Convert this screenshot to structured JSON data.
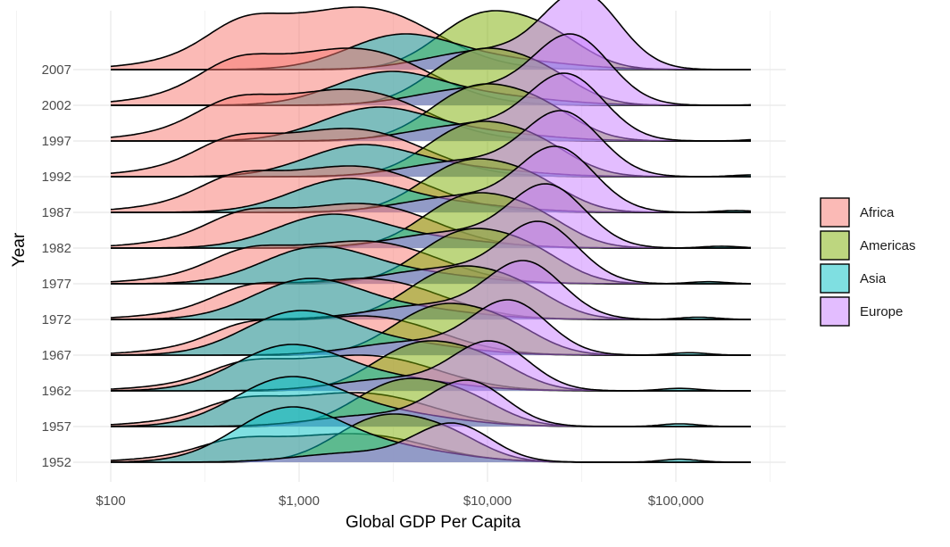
{
  "chart_data": {
    "type": "ridgeline",
    "title": "",
    "xlabel": "Global GDP Per Capita",
    "ylabel": "Year",
    "x_scale": "log10",
    "xlim": [
      100,
      250000
    ],
    "x_ticks": [
      100,
      1000,
      10000,
      100000
    ],
    "x_tick_labels": [
      "$100",
      "$1,000",
      "$10,000",
      "$100,000"
    ],
    "years": [
      1952,
      1957,
      1962,
      1967,
      1972,
      1977,
      1982,
      1987,
      1992,
      1997,
      2002,
      2007
    ],
    "year_labels": [
      "1952",
      "1957",
      "1962",
      "1967",
      "1972",
      "1977",
      "1982",
      "1987",
      "1992",
      "1997",
      "2002",
      "2007"
    ],
    "grid": true,
    "legend_placement": "right",
    "legend_title": "",
    "alpha": 0.5,
    "series": [
      {
        "name": "Africa",
        "color": "#F8766D",
        "components": [
          [
            3.02,
            0.46,
            0.5
          ],
          [
            2.65,
            0.18,
            0.2
          ],
          [
            3.45,
            0.3,
            0.3
          ]
        ],
        "peak_per_year": [
          0.8,
          0.95,
          1.0,
          1.1,
          1.15,
          1.2,
          1.25,
          1.3,
          1.35,
          1.45,
          1.6,
          1.75
        ],
        "shift_per_year": [
          0,
          0.02,
          0.05,
          0.06,
          0.07,
          0.06,
          0.04,
          0.0,
          -0.02,
          -0.02,
          0.0,
          0.04
        ]
      },
      {
        "name": "Americas",
        "color": "#7CAE00",
        "components": [
          [
            3.43,
            0.24,
            1.0
          ],
          [
            3.8,
            0.2,
            0.5
          ]
        ],
        "peak_per_year": [
          1.35,
          1.35,
          1.4,
          1.45,
          1.5,
          1.55,
          1.55,
          1.5,
          1.55,
          1.6,
          1.6,
          1.65
        ],
        "shift_per_year": [
          0,
          0.1,
          0.2,
          0.3,
          0.38,
          0.44,
          0.46,
          0.45,
          0.48,
          0.5,
          0.5,
          0.54
        ]
      },
      {
        "name": "Asia",
        "color": "#00BFC4",
        "components": [
          [
            2.93,
            0.28,
            1.0
          ],
          [
            3.45,
            0.35,
            0.3
          ],
          [
            5.02,
            0.1,
            0.06
          ]
        ],
        "peak_per_year": [
          1.55,
          1.4,
          1.3,
          1.25,
          1.15,
          1.05,
          0.95,
          0.95,
          0.9,
          0.95,
          0.95,
          1.0
        ],
        "shift_per_year": [
          0,
          0.0,
          0.0,
          0.05,
          0.1,
          0.15,
          0.22,
          0.3,
          0.38,
          0.46,
          0.53,
          0.6
        ]
      },
      {
        "name": "Europe",
        "color": "#C77CFF",
        "components": [
          [
            3.82,
            0.2,
            1.0
          ],
          [
            3.3,
            0.3,
            0.25
          ]
        ],
        "peak_per_year": [
          1.1,
          1.3,
          1.4,
          1.55,
          1.65,
          1.75,
          1.8,
          1.85,
          1.85,
          1.9,
          2.0,
          2.2
        ],
        "shift_per_year": [
          0,
          0.08,
          0.2,
          0.3,
          0.38,
          0.46,
          0.5,
          0.55,
          0.58,
          0.6,
          0.63,
          0.68
        ]
      }
    ]
  }
}
